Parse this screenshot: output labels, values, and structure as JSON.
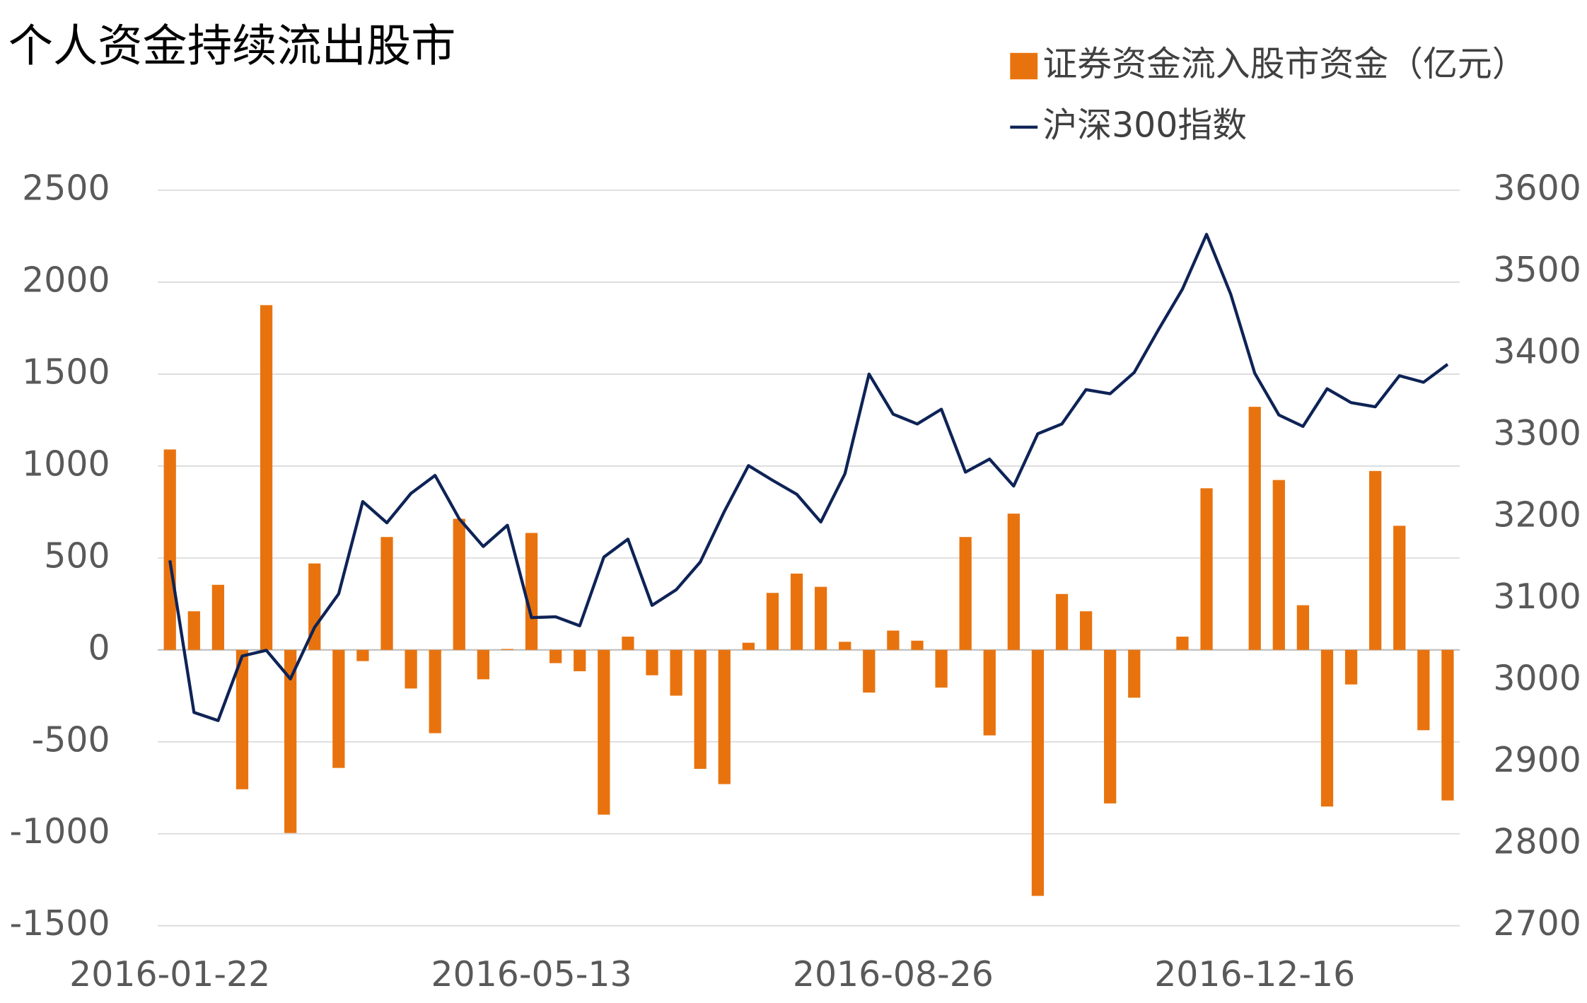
{
  "chart_data": {
    "type": "bar-line",
    "title": "个人资金持续流出股市",
    "categories": [
      "2016-01-22",
      null,
      null,
      null,
      null,
      null,
      null,
      null,
      null,
      null,
      null,
      null,
      null,
      null,
      null,
      "2016-05-13",
      null,
      null,
      null,
      null,
      null,
      null,
      null,
      null,
      null,
      null,
      null,
      null,
      null,
      null,
      "2016-08-26",
      null,
      null,
      null,
      null,
      null,
      null,
      null,
      null,
      null,
      null,
      null,
      null,
      null,
      null,
      "2016-12-16",
      null,
      null,
      null,
      null,
      null,
      null,
      null,
      null
    ],
    "series": [
      {
        "name": "证券资金流入股市资金（亿元）",
        "color": "#e8730e",
        "kind": "bar",
        "axis": "y",
        "values": [
          1090,
          210,
          354,
          -758,
          1875,
          -996,
          470,
          -642,
          -61,
          614,
          -210,
          -453,
          713,
          -160,
          5,
          636,
          -72,
          -116,
          -896,
          72,
          -138,
          -249,
          -647,
          -730,
          39,
          310,
          415,
          343,
          44,
          -232,
          105,
          50,
          -205,
          614,
          -465,
          741,
          -1338,
          304,
          210,
          -835,
          -260,
          0,
          72,
          879,
          0,
          1322,
          924,
          243,
          -852,
          -188,
          973,
          675,
          -437,
          -819
        ]
      },
      {
        "name": "沪深300指数",
        "color": "#0e2356",
        "kind": "line",
        "axis": "y2",
        "values": [
          3147,
          2961,
          2951,
          3030,
          3037,
          3002,
          3065,
          3106,
          3219,
          3193,
          3229,
          3251,
          3198,
          3164,
          3190,
          3077,
          3078,
          3067,
          3151,
          3173,
          3092,
          3111,
          3145,
          3207,
          3263,
          3245,
          3228,
          3194,
          3253,
          3375,
          3326,
          3314,
          3332,
          3255,
          3271,
          3238,
          3302,
          3314,
          3356,
          3351,
          3377,
          3429,
          3479,
          3546,
          3473,
          3376,
          3325,
          3311,
          3357,
          3340,
          3335,
          3373,
          3365,
          3387
        ]
      }
    ],
    "ylim": [
      -1500,
      2500
    ],
    "yticks": [
      -1500,
      -1000,
      -500,
      0,
      500,
      1000,
      1500,
      2000,
      2500
    ],
    "y2lim": [
      2700,
      3600
    ],
    "y2ticks": [
      2700,
      2800,
      2900,
      3000,
      3100,
      3200,
      3300,
      3400,
      3500,
      3600
    ],
    "grid": true,
    "legend": "top-right"
  }
}
